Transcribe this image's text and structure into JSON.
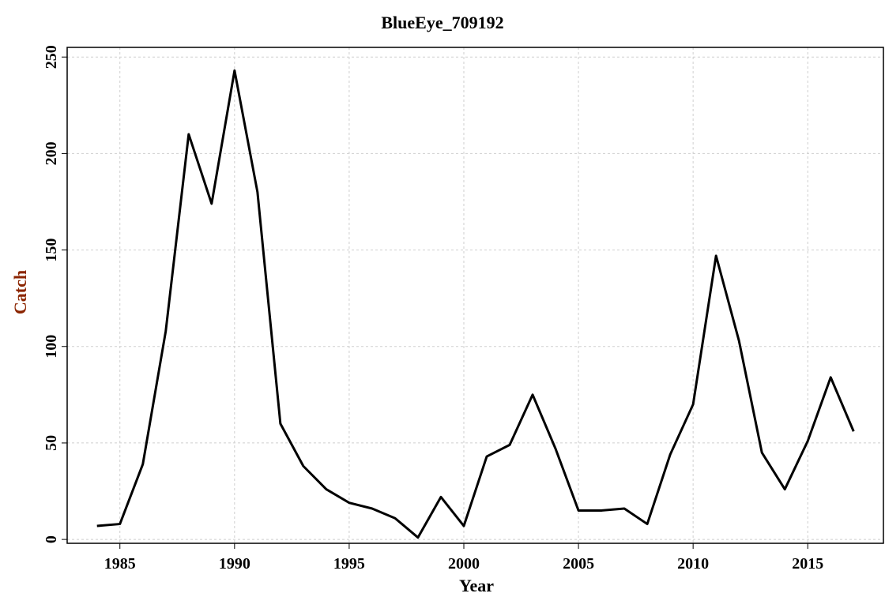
{
  "chart_data": {
    "type": "line",
    "title": "BlueEye_709192",
    "xlabel": "Year",
    "ylabel": "Catch",
    "x": [
      1984,
      1985,
      1986,
      1987,
      1988,
      1989,
      1990,
      1991,
      1992,
      1993,
      1994,
      1995,
      1996,
      1997,
      1998,
      1999,
      2000,
      2001,
      2002,
      2003,
      2004,
      2005,
      2006,
      2007,
      2008,
      2009,
      2010,
      2011,
      2012,
      2013,
      2014,
      2015,
      2016,
      2017
    ],
    "series": [
      {
        "name": "Catch",
        "color": "#000000",
        "values": [
          7,
          8,
          39,
          108,
          210,
          174,
          243,
          180,
          60,
          38,
          26,
          19,
          16,
          11,
          1,
          22,
          7,
          43,
          49,
          75,
          47,
          15,
          15,
          16,
          8,
          44,
          70,
          147,
          103,
          45,
          26,
          51,
          84,
          56
        ]
      }
    ],
    "xlim": [
      1982.7,
      2018.3
    ],
    "ylim": [
      -2,
      255
    ],
    "xticks": [
      1985,
      1990,
      1995,
      2000,
      2005,
      2010,
      2015
    ],
    "yticks": [
      0,
      50,
      100,
      150,
      200,
      250
    ],
    "grid": true,
    "ylabel_color": "#8b2500"
  }
}
